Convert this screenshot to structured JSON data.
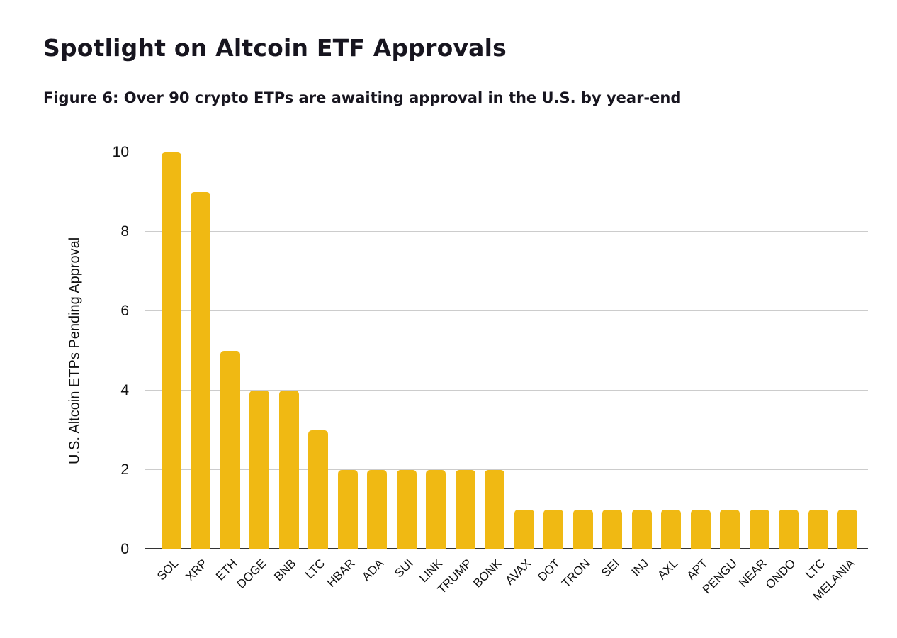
{
  "page": {
    "title": "Spotlight on Altcoin ETF Approvals",
    "figure_caption": "Figure 6: Over 90 crypto ETPs are awaiting approval in the U.S. by year-end"
  },
  "chart_data": {
    "type": "bar",
    "title": "",
    "categories": [
      "SOL",
      "XRP",
      "ETH",
      "DOGE",
      "BNB",
      "LTC",
      "HBAR",
      "ADA",
      "SUI",
      "LINK",
      "TRUMP",
      "BONK",
      "AVAX",
      "DOT",
      "TRON",
      "SEI",
      "INJ",
      "AXL",
      "APT",
      "PENGU",
      "NEAR",
      "ONDO",
      "LTC",
      "MELANIA"
    ],
    "values": [
      10,
      9,
      5,
      4,
      4,
      3,
      2,
      2,
      2,
      2,
      2,
      2,
      1,
      1,
      1,
      1,
      1,
      1,
      1,
      1,
      1,
      1,
      1,
      1
    ],
    "xlabel": "",
    "ylabel": "U.S. Altcoin ETPs Pending Approval",
    "ylim": [
      0,
      10
    ],
    "yticks": [
      0,
      2,
      4,
      6,
      8,
      10
    ],
    "grid": true,
    "legend_position": "none",
    "colors": {
      "bar": "#F0B913",
      "gridline": "#CCCCCC",
      "axis_line": "#333333",
      "text": "#17151F"
    }
  }
}
